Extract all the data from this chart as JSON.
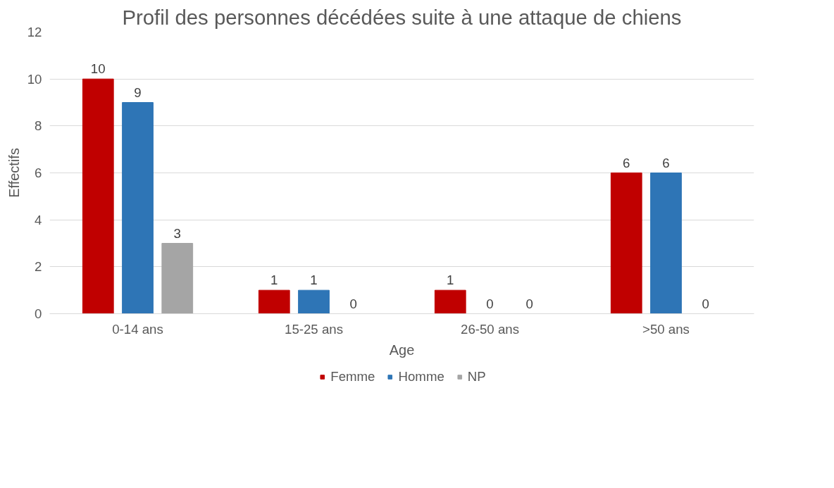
{
  "chart_data": {
    "type": "bar",
    "title": "Profil des personnes décédées suite à une attaque de chiens",
    "xlabel": "Age",
    "ylabel": "Effectifs",
    "categories": [
      "0-14 ans",
      "15-25 ans",
      "26-50 ans",
      ">50 ans"
    ],
    "series": [
      {
        "name": "Femme",
        "color": "#c00000",
        "values": [
          10,
          1,
          1,
          6
        ]
      },
      {
        "name": "Homme",
        "color": "#2e75b6",
        "values": [
          9,
          1,
          0,
          6
        ]
      },
      {
        "name": "NP",
        "color": "#a5a5a5",
        "values": [
          3,
          0,
          0,
          0
        ]
      }
    ],
    "ylim": [
      0,
      12
    ],
    "yticks": [
      0,
      2,
      4,
      6,
      8,
      10,
      12
    ],
    "grid": "y",
    "data_labels": true,
    "legend": "bottom"
  }
}
